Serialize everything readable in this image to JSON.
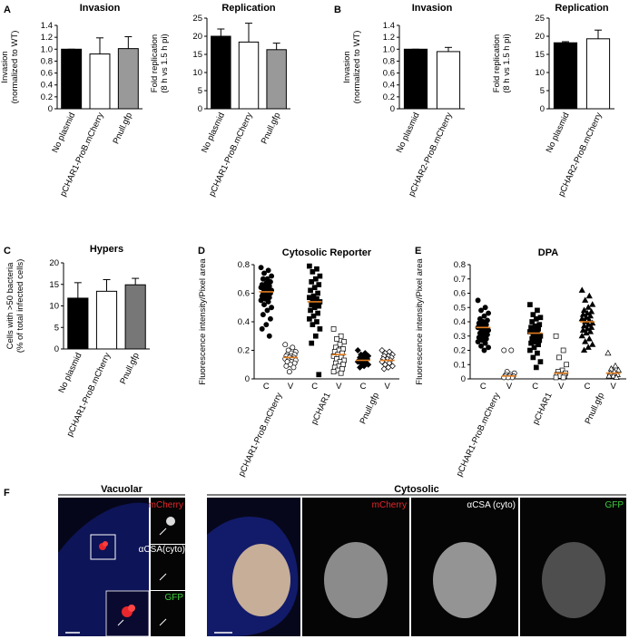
{
  "panels": {
    "A_invasion": {
      "letter": "A",
      "chart_data": {
        "type": "bar",
        "title": "Invasion",
        "ylabel": [
          "Invasion",
          "(normalized to WT)"
        ],
        "ylim": [
          0,
          1.4
        ],
        "yticks": [
          "0",
          "0.2",
          "0.4",
          "0.6",
          "0.8",
          "1.0",
          "1.2",
          "1.4"
        ],
        "categories": [
          "No plasmid",
          "pCHAR1-ProB.mCherry",
          "Pnull.gfp"
        ],
        "values": [
          1.0,
          0.92,
          1.01
        ],
        "errors": [
          0.0,
          0.27,
          0.2
        ],
        "fills": [
          "#000000",
          "#ffffff",
          "#999999"
        ]
      }
    },
    "A_replication": {
      "chart_data": {
        "type": "bar",
        "title": "Replication",
        "ylabel": [
          "Fold replication",
          "(8 h vs 1.5 h pi)"
        ],
        "ylim": [
          0,
          25
        ],
        "yticks": [
          "0",
          "5",
          "10",
          "15",
          "20",
          "25"
        ],
        "categories": [
          "No plasmid",
          "pCHAR1-ProB.mCherry",
          "Pnull.gfp"
        ],
        "values": [
          20.0,
          18.4,
          16.3
        ],
        "errors": [
          2.0,
          5.2,
          1.8
        ],
        "fills": [
          "#000000",
          "#ffffff",
          "#999999"
        ]
      }
    },
    "B_invasion": {
      "letter": "B",
      "chart_data": {
        "type": "bar",
        "title": "Invasion",
        "ylabel": [
          "Invasion",
          "(normalized to WT)"
        ],
        "ylim": [
          0,
          1.4
        ],
        "yticks": [
          "0",
          "0.2",
          "0.4",
          "0.6",
          "0.8",
          "1.0",
          "1.2",
          "1.4"
        ],
        "categories": [
          "No plasmid",
          "pCHAR2-ProB.mCherry"
        ],
        "values": [
          1.0,
          0.96
        ],
        "errors": [
          0.0,
          0.07
        ],
        "fills": [
          "#000000",
          "#ffffff"
        ]
      }
    },
    "B_replication": {
      "chart_data": {
        "type": "bar",
        "title": "Replication",
        "ylabel": [
          "Fold replication",
          "(8 h vs 1.5 h pi)"
        ],
        "ylim": [
          0,
          25
        ],
        "yticks": [
          "0",
          "5",
          "10",
          "15",
          "20",
          "25"
        ],
        "categories": [
          "No plasmid",
          "pCHAR2-ProB.mCherry"
        ],
        "values": [
          18.2,
          19.3
        ],
        "errors": [
          0.3,
          2.4
        ],
        "fills": [
          "#000000",
          "#ffffff"
        ]
      }
    },
    "C_hypers": {
      "letter": "C",
      "chart_data": {
        "type": "bar",
        "title": "Hypers",
        "ylabel": [
          "Cells with >50 bacteria",
          "(% of total infected cells)"
        ],
        "ylim": [
          0,
          20
        ],
        "yticks": [
          "0",
          "5",
          "10",
          "15",
          "20"
        ],
        "categories": [
          "No plasmid",
          "pCHAR1-ProB.mCherry",
          "Pnull.gfp"
        ],
        "values": [
          11.8,
          13.4,
          14.9
        ],
        "errors": [
          3.6,
          2.7,
          1.5
        ],
        "fills": [
          "#000000",
          "#ffffff",
          "#777777"
        ]
      }
    },
    "D_cytosolic": {
      "letter": "D",
      "chart_data": {
        "type": "scatter",
        "title": "Cytosolic Reporter",
        "ylabel": [
          "Fluorescence intensity/Pixel area"
        ],
        "ylim": [
          0,
          0.8
        ],
        "yticks": [
          "0",
          "0.2",
          "0.4",
          "0.6",
          "0.8"
        ],
        "subcategories": [
          "C",
          "V",
          "C",
          "V",
          "C",
          "V"
        ],
        "group_labels": [
          "pCHAR1-ProB.mCherry",
          "pCHAR1",
          "Pnull.gfp"
        ],
        "marker_shapes": [
          "circle",
          "square",
          "diamond"
        ],
        "series": [
          {
            "values": [
              0.78,
              0.76,
              0.74,
              0.72,
              0.7,
              0.7,
              0.68,
              0.67,
              0.66,
              0.65,
              0.64,
              0.64,
              0.63,
              0.62,
              0.62,
              0.61,
              0.6,
              0.6,
              0.59,
              0.58,
              0.57,
              0.56,
              0.55,
              0.54,
              0.52,
              0.5,
              0.48,
              0.45,
              0.42,
              0.38,
              0.35,
              0.3
            ],
            "mean": 0.61
          },
          {
            "values": [
              0.24,
              0.22,
              0.2,
              0.19,
              0.18,
              0.17,
              0.17,
              0.16,
              0.16,
              0.15,
              0.15,
              0.14,
              0.14,
              0.13,
              0.13,
              0.12,
              0.12,
              0.11,
              0.1,
              0.09,
              0.08,
              0.05
            ],
            "mean": 0.15
          },
          {
            "values": [
              0.79,
              0.77,
              0.75,
              0.72,
              0.7,
              0.68,
              0.66,
              0.64,
              0.62,
              0.6,
              0.58,
              0.57,
              0.56,
              0.55,
              0.54,
              0.53,
              0.52,
              0.51,
              0.5,
              0.48,
              0.46,
              0.44,
              0.42,
              0.4,
              0.38,
              0.35,
              0.3,
              0.25,
              0.03
            ],
            "mean": 0.54
          },
          {
            "values": [
              0.35,
              0.3,
              0.28,
              0.26,
              0.24,
              0.22,
              0.21,
              0.2,
              0.19,
              0.18,
              0.17,
              0.16,
              0.15,
              0.14,
              0.13,
              0.12,
              0.11,
              0.1,
              0.09,
              0.08,
              0.07,
              0.06,
              0.05,
              0.04
            ],
            "mean": 0.17
          },
          {
            "values": [
              0.2,
              0.18,
              0.17,
              0.16,
              0.15,
              0.15,
              0.14,
              0.14,
              0.13,
              0.13,
              0.12,
              0.12,
              0.11,
              0.11,
              0.1,
              0.09,
              0.08
            ],
            "mean": 0.13
          },
          {
            "values": [
              0.2,
              0.19,
              0.18,
              0.17,
              0.16,
              0.16,
              0.15,
              0.14,
              0.14,
              0.13,
              0.12,
              0.12,
              0.11,
              0.1,
              0.09,
              0.08,
              0.07
            ],
            "mean": 0.13
          }
        ]
      }
    },
    "E_dpa": {
      "letter": "E",
      "chart_data": {
        "type": "scatter",
        "title": "DPA",
        "ylabel": [
          "Fluorescence intensity/Pixel area"
        ],
        "ylim": [
          0,
          0.8
        ],
        "yticks": [
          "0",
          "0.1",
          "0.2",
          "0.3",
          "0.4",
          "0.5",
          "0.6",
          "0.7",
          "0.8"
        ],
        "subcategories": [
          "C",
          "V",
          "C",
          "V",
          "C",
          "V"
        ],
        "group_labels": [
          "pCHAR1-ProB.mCherry",
          "pCHAR1",
          "Pnull.gfp"
        ],
        "marker_shapes": [
          "circle",
          "square",
          "triangle"
        ],
        "series": [
          {
            "values": [
              0.55,
              0.5,
              0.48,
              0.46,
              0.44,
              0.42,
              0.41,
              0.4,
              0.39,
              0.38,
              0.37,
              0.36,
              0.35,
              0.35,
              0.34,
              0.33,
              0.32,
              0.31,
              0.3,
              0.29,
              0.28,
              0.27,
              0.26,
              0.25,
              0.23,
              0.22,
              0.2
            ],
            "mean": 0.36
          },
          {
            "values": [
              0.2,
              0.2,
              0.05,
              0.04,
              0.03,
              0.03,
              0.02,
              0.02,
              0.02,
              0.01,
              0.01,
              0.01
            ],
            "mean": 0.02
          },
          {
            "values": [
              0.52,
              0.48,
              0.45,
              0.43,
              0.42,
              0.4,
              0.38,
              0.37,
              0.36,
              0.35,
              0.34,
              0.33,
              0.32,
              0.31,
              0.3,
              0.29,
              0.28,
              0.27,
              0.26,
              0.25,
              0.24,
              0.22,
              0.2,
              0.18,
              0.15,
              0.12,
              0.08
            ],
            "mean": 0.32
          },
          {
            "values": [
              0.3,
              0.2,
              0.15,
              0.1,
              0.06,
              0.05,
              0.04,
              0.03,
              0.03,
              0.02,
              0.02,
              0.01,
              0.01
            ],
            "mean": 0.04
          },
          {
            "values": [
              0.62,
              0.58,
              0.55,
              0.52,
              0.5,
              0.48,
              0.47,
              0.46,
              0.45,
              0.44,
              0.43,
              0.42,
              0.41,
              0.4,
              0.39,
              0.38,
              0.37,
              0.36,
              0.35,
              0.34,
              0.33,
              0.32,
              0.3,
              0.28,
              0.26,
              0.24,
              0.22,
              0.2
            ],
            "mean": 0.4
          },
          {
            "values": [
              0.18,
              0.09,
              0.07,
              0.06,
              0.05,
              0.04,
              0.03,
              0.02,
              0.02,
              0.01
            ],
            "mean": 0.04
          }
        ]
      }
    }
  },
  "micrographs": {
    "letter": "F",
    "vacuolar_header": "Vacuolar",
    "cytosolic_header": "Cytosolic",
    "label_mcherry": "mCherry",
    "label_acsa": "αCSA (cyto)",
    "label_acsa_short": "αCSA(cyto)",
    "label_gfp": "GFP",
    "colors": {
      "mcherry": "#e8262b",
      "gfp": "#3ccf3c",
      "nucleus": "#1b2a9e"
    }
  }
}
